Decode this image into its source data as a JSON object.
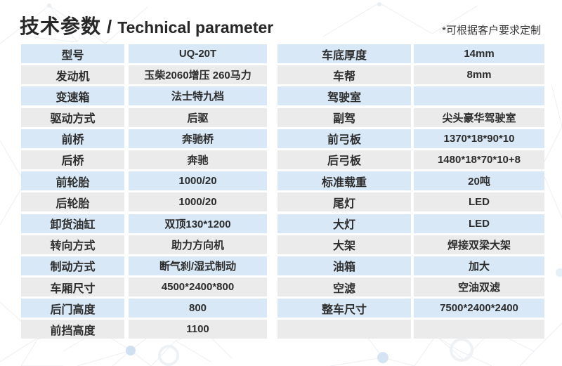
{
  "header": {
    "title_zh": "技术参数",
    "separator": "/",
    "title_en": "Technical parameter",
    "note": "*可根据客户要求定制"
  },
  "colors": {
    "row_blue": "#d8e8f6",
    "row_gray": "#ebebeb",
    "text": "#2d2d2d",
    "background": "#ffffff",
    "pattern_line": "#e9edf2",
    "pattern_node": "#cfe0f0"
  },
  "tables": {
    "left": {
      "rows": [
        {
          "label": "型号",
          "value": "UQ-20T"
        },
        {
          "label": "发动机",
          "value": "玉柴2060增压 260马力"
        },
        {
          "label": "变速箱",
          "value": "法士特九档"
        },
        {
          "label": "驱动方式",
          "value": "后驱"
        },
        {
          "label": "前桥",
          "value": "奔驰桥"
        },
        {
          "label": "后桥",
          "value": "奔驰"
        },
        {
          "label": "前轮胎",
          "value": "1000/20"
        },
        {
          "label": "后轮胎",
          "value": "1000/20"
        },
        {
          "label": "卸货油缸",
          "value": "双顶130*1200"
        },
        {
          "label": "转向方式",
          "value": "助力方向机"
        },
        {
          "label": "制动方式",
          "value": "断气刹/湿式制动"
        },
        {
          "label": "车厢尺寸",
          "value": "4500*2400*800"
        },
        {
          "label": "后门高度",
          "value": "800"
        },
        {
          "label": "前挡高度",
          "value": "1100"
        }
      ]
    },
    "right": {
      "rows": [
        {
          "label": "车底厚度",
          "value": "14mm"
        },
        {
          "label": "车帮",
          "value": "8mm"
        },
        {
          "label": "驾驶室",
          "value": ""
        },
        {
          "label": "副驾",
          "value": "尖头豪华驾驶室"
        },
        {
          "label": "前弓板",
          "value": "1370*18*90*10"
        },
        {
          "label": "后弓板",
          "value": "1480*18*70*10+8"
        },
        {
          "label": "标准载重",
          "value": "20吨"
        },
        {
          "label": "尾灯",
          "value": "LED"
        },
        {
          "label": "大灯",
          "value": "LED"
        },
        {
          "label": "大架",
          "value": "焊接双梁大架"
        },
        {
          "label": "油箱",
          "value": "加大"
        },
        {
          "label": "空滤",
          "value": "空油双滤"
        },
        {
          "label": "整车尺寸",
          "value": "7500*2400*2400"
        },
        {
          "label": "",
          "value": ""
        }
      ]
    }
  }
}
